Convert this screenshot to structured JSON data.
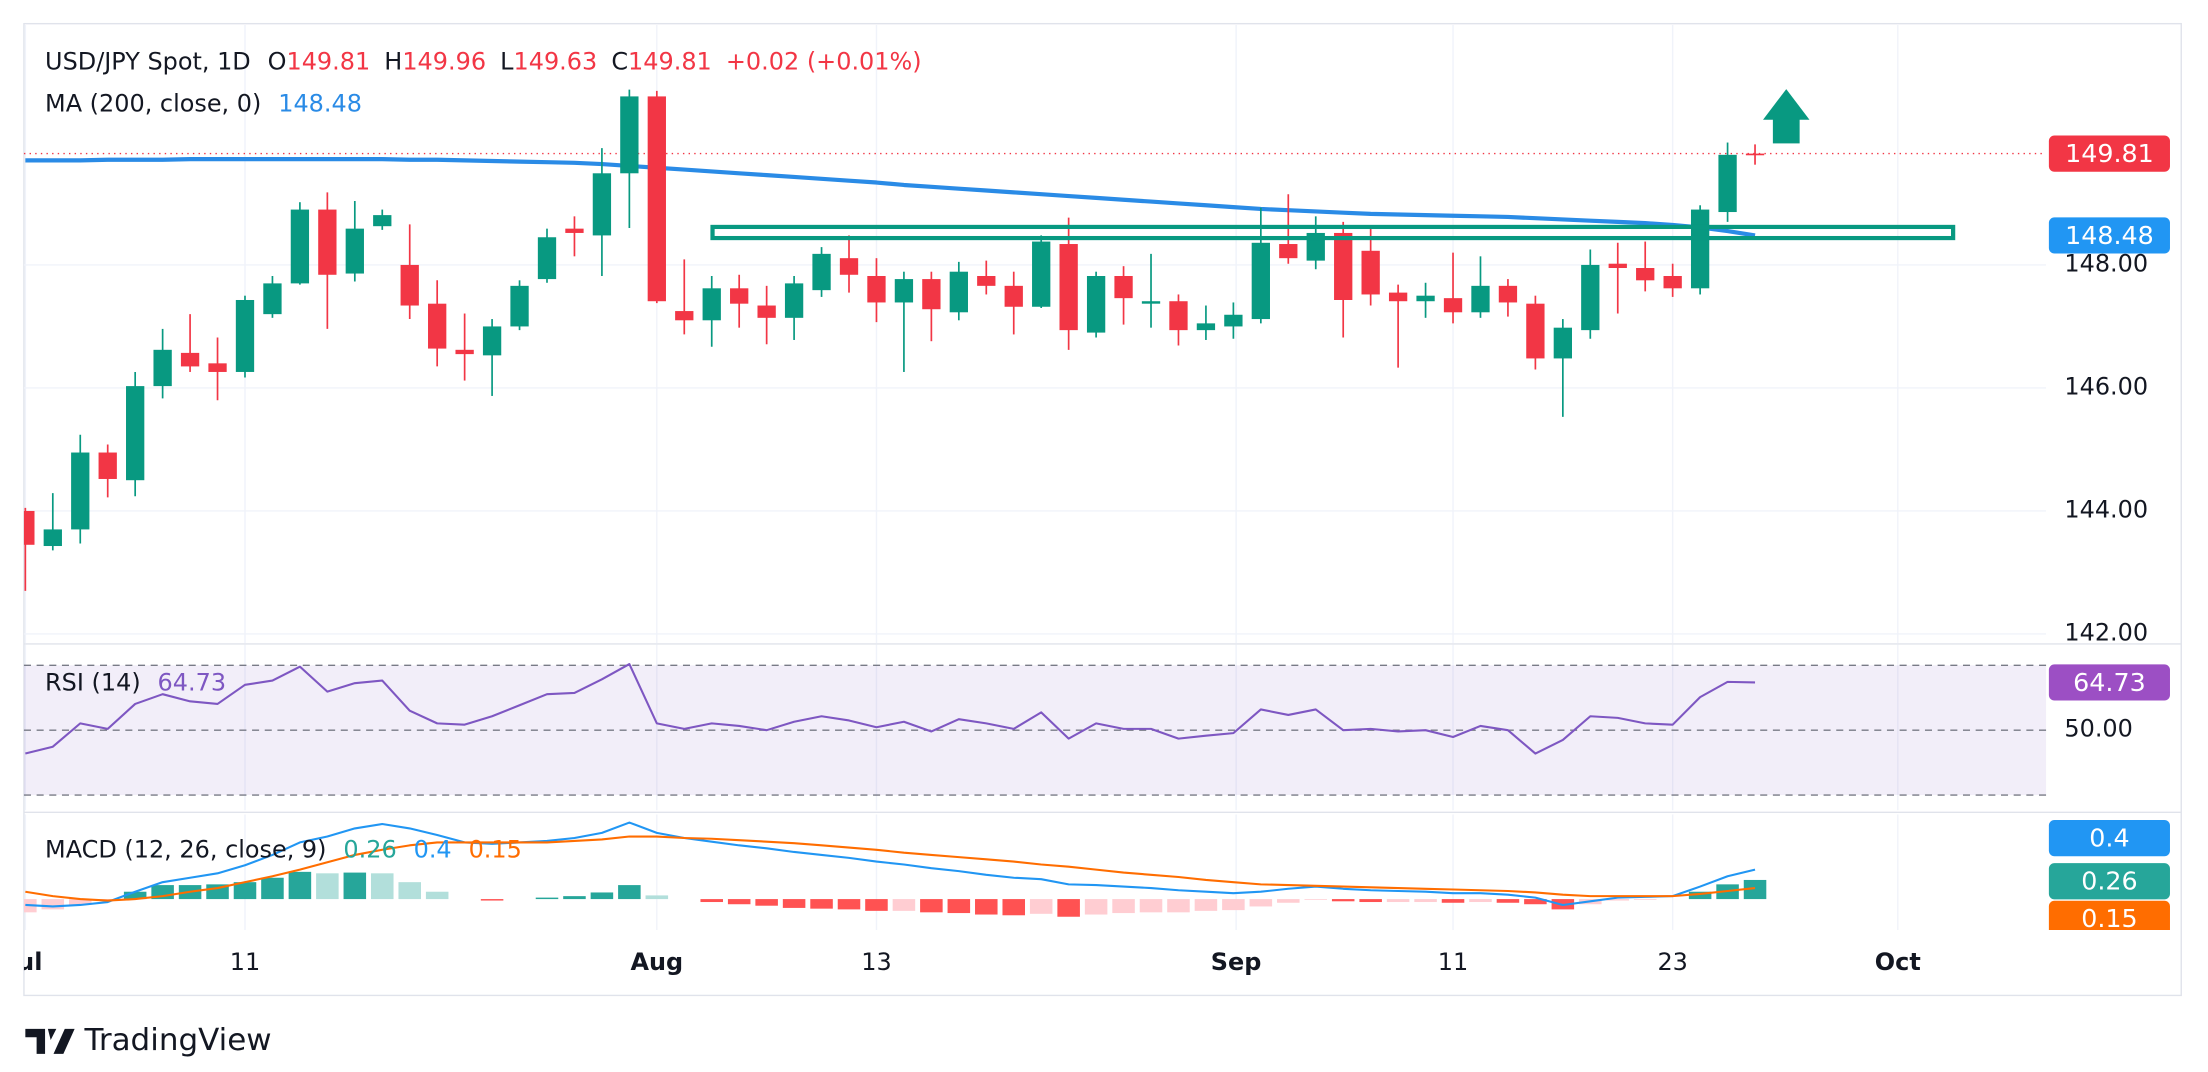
{
  "chart_data": [
    {
      "type": "candlestick",
      "title": "USD/JPY Spot, 1D",
      "ohlc_labels": [
        "O",
        "H",
        "L",
        "C"
      ],
      "change_label": "+0.02 (+0.01%)",
      "up_color": "#089981",
      "down_color": "#f23645",
      "open": [
        144.0,
        143.43,
        143.7,
        144.95,
        144.5,
        146.03,
        146.57,
        146.4,
        146.26,
        147.2,
        147.7,
        148.9,
        147.86,
        148.63,
        148.0,
        147.37,
        146.62,
        146.53,
        147.0,
        147.77,
        148.59,
        148.48,
        149.49,
        150.74,
        147.25,
        147.1,
        147.62,
        147.34,
        147.14,
        147.59,
        148.11,
        147.82,
        147.39,
        147.77,
        147.23,
        147.82,
        147.66,
        147.32,
        148.34,
        146.9,
        147.82,
        147.37,
        147.41,
        146.94,
        147.0,
        147.12,
        148.34,
        148.07,
        148.52,
        148.23,
        147.55,
        147.41,
        147.46,
        147.23,
        147.66,
        147.37,
        146.48,
        146.94,
        148.02,
        147.95,
        147.82,
        147.62,
        148.86,
        149.81
      ],
      "high": [
        144.05,
        144.29,
        145.24,
        145.08,
        146.26,
        146.96,
        147.2,
        146.82,
        147.5,
        147.82,
        149.02,
        149.18,
        149.04,
        148.9,
        148.66,
        147.75,
        147.21,
        147.12,
        147.75,
        148.59,
        148.79,
        149.9,
        150.85,
        150.83,
        148.09,
        147.82,
        147.84,
        147.66,
        147.82,
        148.29,
        148.48,
        148.11,
        147.89,
        147.89,
        148.05,
        148.07,
        147.89,
        148.48,
        148.77,
        147.89,
        147.98,
        148.18,
        147.52,
        147.34,
        147.39,
        148.93,
        149.15,
        148.79,
        148.7,
        148.59,
        147.68,
        147.71,
        148.2,
        148.14,
        147.77,
        147.5,
        147.12,
        148.25,
        148.36,
        148.38,
        148.02,
        148.97,
        149.99,
        149.96
      ],
      "low": [
        142.7,
        143.36,
        143.47,
        144.22,
        144.24,
        145.83,
        146.26,
        145.8,
        146.17,
        147.14,
        147.68,
        146.96,
        147.73,
        148.57,
        147.12,
        146.35,
        146.12,
        145.87,
        146.94,
        147.71,
        148.14,
        147.82,
        148.6,
        147.38,
        146.87,
        146.67,
        146.98,
        146.71,
        146.78,
        147.48,
        147.55,
        147.07,
        146.26,
        146.76,
        147.1,
        147.52,
        146.87,
        147.3,
        146.62,
        146.82,
        147.03,
        146.98,
        146.69,
        146.78,
        146.8,
        147.05,
        148.02,
        147.93,
        146.82,
        147.34,
        146.33,
        147.14,
        147.05,
        147.14,
        147.16,
        146.3,
        145.53,
        146.8,
        147.21,
        147.57,
        147.48,
        147.52,
        148.7,
        149.63
      ],
      "close": [
        143.45,
        143.7,
        144.95,
        144.52,
        146.03,
        146.62,
        146.35,
        146.26,
        147.43,
        147.7,
        148.9,
        147.84,
        148.59,
        148.81,
        147.34,
        146.64,
        146.55,
        147.0,
        147.66,
        148.45,
        148.52,
        149.49,
        150.74,
        147.41,
        147.1,
        147.62,
        147.37,
        147.14,
        147.7,
        148.18,
        147.84,
        147.39,
        147.77,
        147.28,
        147.89,
        147.66,
        147.32,
        148.38,
        146.94,
        147.82,
        147.46,
        147.41,
        146.94,
        147.05,
        147.19,
        148.36,
        148.11,
        148.52,
        147.43,
        147.52,
        147.41,
        147.5,
        147.23,
        147.66,
        147.39,
        146.48,
        146.98,
        148.0,
        147.95,
        147.75,
        147.62,
        148.9,
        149.79,
        149.81
      ],
      "series": [
        {
          "name": "MA (200, close, 0)",
          "color": "#2a8be6",
          "values": [
            149.7,
            149.7,
            149.7,
            149.71,
            149.71,
            149.71,
            149.72,
            149.72,
            149.72,
            149.72,
            149.72,
            149.72,
            149.72,
            149.72,
            149.71,
            149.71,
            149.7,
            149.69,
            149.68,
            149.67,
            149.66,
            149.64,
            149.61,
            149.58,
            149.55,
            149.52,
            149.49,
            149.46,
            149.43,
            149.4,
            149.37,
            149.34,
            149.3,
            149.27,
            149.24,
            149.21,
            149.18,
            149.15,
            149.12,
            149.09,
            149.06,
            149.03,
            149.0,
            148.97,
            148.94,
            148.91,
            148.89,
            148.87,
            148.85,
            148.83,
            148.82,
            148.81,
            148.8,
            148.79,
            148.78,
            148.76,
            148.74,
            148.72,
            148.7,
            148.68,
            148.65,
            148.61,
            148.55,
            148.48
          ]
        }
      ],
      "xlim": [
        0,
        73.6
      ],
      "xticks": [
        {
          "value": 0,
          "label": "Jul"
        },
        {
          "value": 8,
          "label": "11"
        },
        {
          "value": 23,
          "label": "Aug"
        },
        {
          "value": 31,
          "label": "13"
        },
        {
          "value": 44.1,
          "label": "Sep"
        },
        {
          "value": 52,
          "label": "11"
        },
        {
          "value": 60,
          "label": "23"
        },
        {
          "value": 68.2,
          "label": "Oct"
        }
      ],
      "ylim": [
        141.85,
        151.9
      ],
      "yticks": [
        {
          "value": 142,
          "label": "142.00"
        },
        {
          "value": 144,
          "label": "144.00"
        },
        {
          "value": 146,
          "label": "146.00"
        },
        {
          "value": 148,
          "label": "148.00"
        }
      ],
      "grid": true
    },
    {
      "type": "line",
      "series": [
        {
          "name": "RSI (14)",
          "color": "#7e57c2",
          "values": [
            42.8,
            44.9,
            52.1,
            50.4,
            58.1,
            61.1,
            58.9,
            58.1,
            64.0,
            65.3,
            69.6,
            61.9,
            64.5,
            65.3,
            56.0,
            52.1,
            51.7,
            54.3,
            57.7,
            61.1,
            61.5,
            65.7,
            70.4,
            52.1,
            50.4,
            52.1,
            51.3,
            50.0,
            52.6,
            54.3,
            53.0,
            50.9,
            52.6,
            49.6,
            53.4,
            52.1,
            50.4,
            55.5,
            47.4,
            52.1,
            50.4,
            50.4,
            47.4,
            48.3,
            49.1,
            56.4,
            54.7,
            56.4,
            50.0,
            50.4,
            49.6,
            50.0,
            47.9,
            51.3,
            50.0,
            42.8,
            47.0,
            54.3,
            53.8,
            52.1,
            51.7,
            60.2,
            64.9,
            64.73
          ]
        }
      ],
      "ylim": [
        25.3,
        76.4
      ],
      "yticks": [
        {
          "value": 50,
          "label": "50.00"
        }
      ],
      "bands": [
        30,
        70
      ],
      "band_color": "#7e57c2"
    },
    {
      "type": "macd",
      "title": "MACD (12, 26, close, 9)",
      "histogram": {
        "colors": [
          "#26a69a",
          "#b2dfdb",
          "#ffcdd2",
          "#ff5252"
        ],
        "values": [
          -0.18,
          -0.14,
          -0.08,
          -0.02,
          0.1,
          0.19,
          0.19,
          0.2,
          0.23,
          0.29,
          0.37,
          0.35,
          0.36,
          0.35,
          0.23,
          0.1,
          0.0,
          -0.02,
          0.0,
          0.02,
          0.04,
          0.09,
          0.19,
          0.05,
          0.0,
          -0.04,
          -0.07,
          -0.09,
          -0.12,
          -0.13,
          -0.14,
          -0.16,
          -0.16,
          -0.18,
          -0.19,
          -0.21,
          -0.22,
          -0.2,
          -0.24,
          -0.21,
          -0.19,
          -0.18,
          -0.18,
          -0.16,
          -0.15,
          -0.1,
          -0.05,
          -0.01,
          -0.03,
          -0.04,
          -0.04,
          -0.04,
          -0.05,
          -0.04,
          -0.05,
          -0.07,
          -0.14,
          -0.07,
          -0.02,
          -0.01,
          0.0,
          0.1,
          0.2,
          0.26
        ]
      },
      "macd": {
        "color": "#2196f3",
        "values": [
          -0.08,
          -0.1,
          -0.08,
          -0.04,
          0.1,
          0.23,
          0.29,
          0.35,
          0.46,
          0.6,
          0.77,
          0.85,
          0.96,
          1.02,
          0.96,
          0.87,
          0.77,
          0.75,
          0.77,
          0.79,
          0.83,
          0.9,
          1.04,
          0.9,
          0.83,
          0.78,
          0.73,
          0.69,
          0.64,
          0.6,
          0.56,
          0.51,
          0.47,
          0.42,
          0.38,
          0.33,
          0.29,
          0.27,
          0.2,
          0.19,
          0.17,
          0.15,
          0.12,
          0.1,
          0.08,
          0.1,
          0.14,
          0.17,
          0.14,
          0.12,
          0.11,
          0.1,
          0.08,
          0.08,
          0.06,
          0.02,
          -0.08,
          -0.03,
          0.02,
          0.03,
          0.04,
          0.17,
          0.31,
          0.4
        ]
      },
      "signal": {
        "color": "#ff6d00",
        "values": [
          0.1,
          0.04,
          0.0,
          -0.02,
          0.0,
          0.04,
          0.1,
          0.15,
          0.23,
          0.31,
          0.4,
          0.5,
          0.6,
          0.67,
          0.73,
          0.77,
          0.77,
          0.77,
          0.77,
          0.77,
          0.79,
          0.81,
          0.85,
          0.85,
          0.83,
          0.82,
          0.8,
          0.78,
          0.76,
          0.73,
          0.7,
          0.67,
          0.63,
          0.6,
          0.57,
          0.54,
          0.51,
          0.47,
          0.44,
          0.4,
          0.36,
          0.33,
          0.3,
          0.26,
          0.23,
          0.2,
          0.19,
          0.18,
          0.17,
          0.16,
          0.15,
          0.14,
          0.13,
          0.12,
          0.11,
          0.09,
          0.06,
          0.04,
          0.04,
          0.04,
          0.04,
          0.07,
          0.11,
          0.15
        ]
      },
      "ylim": [
        -0.42,
        1.15
      ]
    }
  ],
  "watermark": "TradingView"
}
